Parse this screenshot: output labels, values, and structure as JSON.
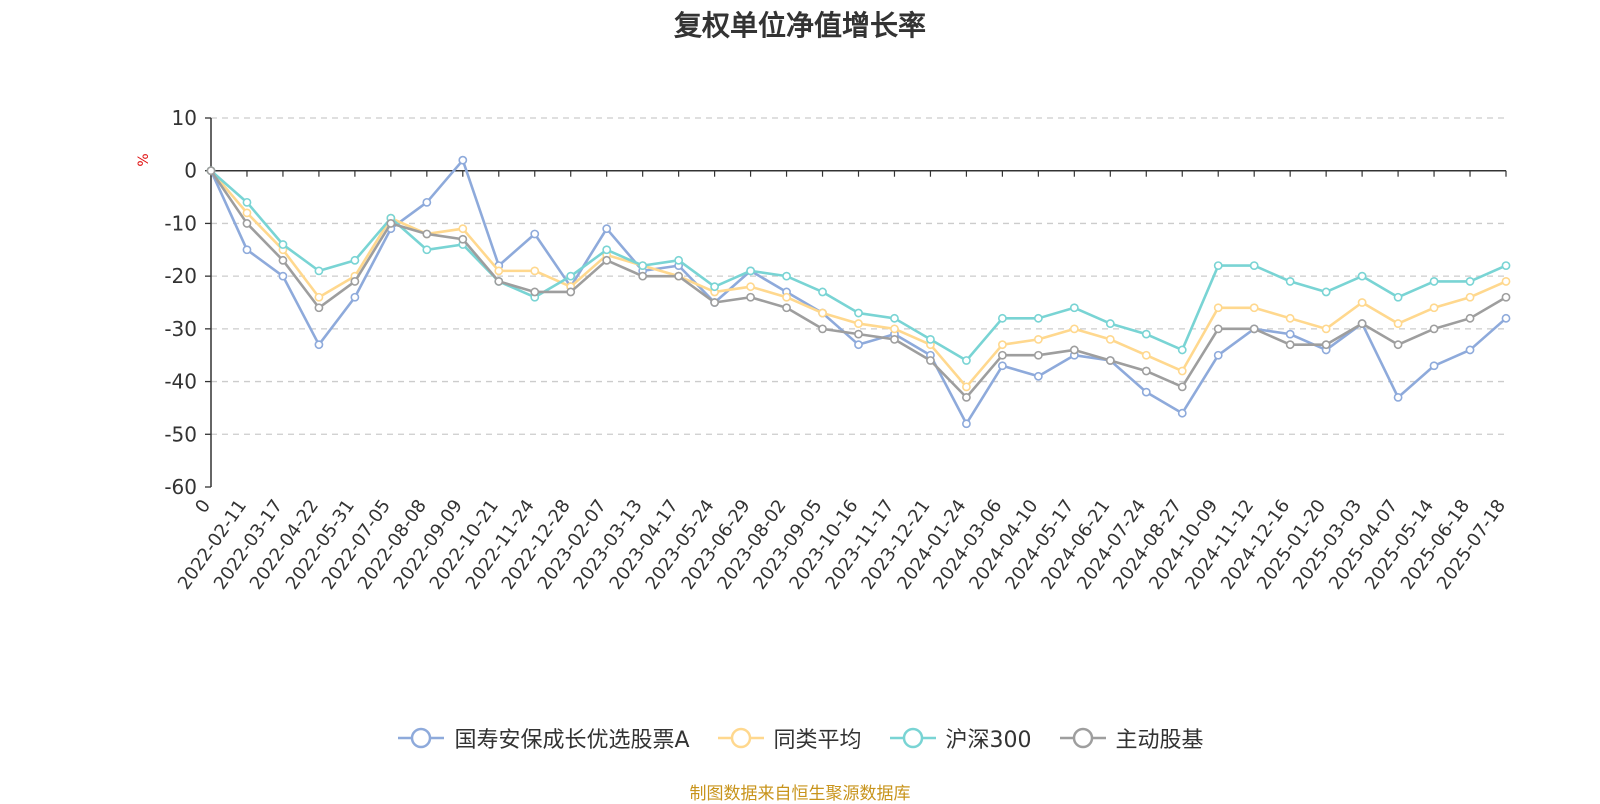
{
  "chart_data": {
    "type": "line",
    "title": "复权单位净值增长率",
    "ylabel": "%",
    "ylim": [
      -60,
      10
    ],
    "yticks": [
      10,
      0,
      -10,
      -20,
      -30,
      -40,
      -50,
      -60
    ],
    "grid": true,
    "legend_position": "bottom",
    "x": [
      "0",
      "2022-02-11",
      "2022-03-17",
      "2022-04-22",
      "2022-05-31",
      "2022-07-05",
      "2022-08-08",
      "2022-09-09",
      "2022-10-21",
      "2022-11-24",
      "2022-12-28",
      "2023-02-07",
      "2023-03-13",
      "2023-04-17",
      "2023-05-24",
      "2023-06-29",
      "2023-08-02",
      "2023-09-05",
      "2023-10-16",
      "2023-11-17",
      "2023-12-21",
      "2024-01-24",
      "2024-03-06",
      "2024-04-10",
      "2024-05-17",
      "2024-06-21",
      "2024-07-24",
      "2024-08-27",
      "2024-10-09",
      "2024-11-12",
      "2024-12-16",
      "2025-01-20",
      "2025-03-03",
      "2025-04-07",
      "2025-05-14",
      "2025-06-18",
      "2025-07-18"
    ],
    "series": [
      {
        "name": "国寿安保成长优选股票A",
        "color": "#8eaadb",
        "values": [
          0,
          -15,
          -20,
          -33,
          -24,
          -11,
          -6,
          2,
          -18,
          -12,
          -22,
          -11,
          -19,
          -18,
          -25,
          -19,
          -23,
          -27,
          -33,
          -31,
          -35,
          -48,
          -37,
          -39,
          -35,
          -36,
          -42,
          -46,
          -35,
          -30,
          -31,
          -34,
          -29,
          -43,
          -37,
          -34,
          -28
        ]
      },
      {
        "name": "同类平均",
        "color": "#ffd88e",
        "values": [
          0,
          -8,
          -15,
          -24,
          -20,
          -9,
          -12,
          -11,
          -19,
          -19,
          -22,
          -16,
          -18,
          -20,
          -23,
          -22,
          -24,
          -27,
          -29,
          -30,
          -33,
          -41,
          -33,
          -32,
          -30,
          -32,
          -35,
          -38,
          -26,
          -26,
          -28,
          -30,
          -25,
          -29,
          -26,
          -24,
          -21
        ]
      },
      {
        "name": "沪深300",
        "color": "#79d4d4",
        "values": [
          0,
          -6,
          -14,
          -19,
          -17,
          -9,
          -15,
          -14,
          -21,
          -24,
          -20,
          -15,
          -18,
          -17,
          -22,
          -19,
          -20,
          -23,
          -27,
          -28,
          -32,
          -36,
          -28,
          -28,
          -26,
          -29,
          -31,
          -34,
          -18,
          -18,
          -21,
          -23,
          -20,
          -24,
          -21,
          -21,
          -18
        ]
      },
      {
        "name": "主动股基",
        "color": "#9e9e9e",
        "values": [
          0,
          -10,
          -17,
          -26,
          -21,
          -10,
          -12,
          -13,
          -21,
          -23,
          -23,
          -17,
          -20,
          -20,
          -25,
          -24,
          -26,
          -30,
          -31,
          -32,
          -36,
          -43,
          -35,
          -35,
          -34,
          -36,
          -38,
          -41,
          -30,
          -30,
          -33,
          -33,
          -29,
          -33,
          -30,
          -28,
          -24
        ]
      }
    ]
  },
  "footer": "制图数据来自恒生聚源数据库"
}
